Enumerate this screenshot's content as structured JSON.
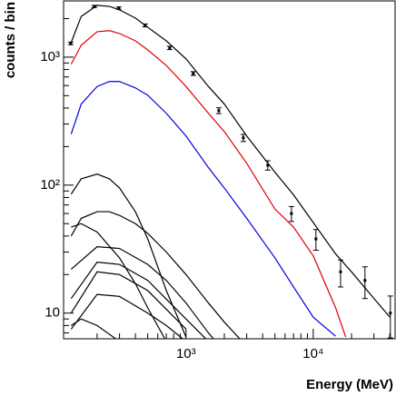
{
  "chart_data": {
    "type": "line",
    "xlabel": "Energy (MeV)",
    "ylabel": "counts / bin",
    "xscale": "log",
    "yscale": "log",
    "xlim": [
      109,
      44000
    ],
    "ylim": [
      6.3,
      2750
    ],
    "xticks": [
      {
        "value": 1000,
        "label": "10³"
      },
      {
        "value": 10000,
        "label": "10⁴"
      }
    ],
    "yticks": [
      10,
      {
        "value": 100,
        "label": "10²"
      },
      {
        "value": 1000,
        "label": "10³"
      }
    ],
    "xticks_minor": [
      200,
      300,
      400,
      500,
      600,
      700,
      800,
      900,
      2000,
      3000,
      4000,
      5000,
      6000,
      7000,
      8000,
      9000,
      20000,
      30000,
      40000
    ],
    "yticks_minor": [
      7,
      8,
      9,
      20,
      30,
      40,
      50,
      60,
      70,
      80,
      90,
      200,
      300,
      400,
      500,
      600,
      700,
      800,
      900,
      2000
    ],
    "points": {
      "color": "#000000",
      "x": [
        124,
        190,
        296,
        477,
        744,
        1140,
        1810,
        2820,
        4390,
        6740,
        10500,
        16400,
        25500,
        40400
      ],
      "values": [
        1280,
        2490,
        2420,
        1770,
        1180,
        745,
        382,
        234,
        143,
        60,
        38,
        21,
        18,
        10
      ],
      "errors": [
        30,
        50,
        50,
        45,
        35,
        25,
        20,
        15,
        12,
        8,
        7,
        5,
        5,
        3.6
      ]
    },
    "series": [
      {
        "color": "#000000",
        "x": [
          125,
          150,
          200,
          250,
          300,
          400,
          500,
          700,
          1000,
          1500,
          2000,
          3000,
          5000,
          7000,
          10000,
          15000,
          20000,
          30000,
          40000
        ],
        "values": [
          1300,
          2080,
          2540,
          2490,
          2340,
          2020,
          1710,
          1340,
          970,
          590,
          430,
          242,
          126,
          84,
          51,
          29,
          21,
          13,
          9.3
        ]
      },
      {
        "color": "#e00000",
        "x": [
          125,
          150,
          200,
          250,
          300,
          400,
          500,
          700,
          1000,
          1500,
          2000,
          3000,
          5000,
          7000,
          10000,
          15000,
          18000
        ],
        "values": [
          880,
          1240,
          1580,
          1610,
          1530,
          1340,
          1140,
          860,
          590,
          364,
          262,
          148,
          65,
          47,
          28,
          11,
          6.5
        ]
      },
      {
        "color": "#0000e0",
        "x": [
          125,
          150,
          200,
          250,
          300,
          400,
          500,
          700,
          1000,
          1500,
          2000,
          3000,
          5000,
          7000,
          10000,
          15000
        ],
        "values": [
          250,
          430,
          590,
          645,
          645,
          575,
          504,
          364,
          242,
          137,
          95,
          55,
          27,
          16,
          9.3,
          6.6
        ]
      },
      {
        "color": "#000000",
        "x": [
          125,
          150,
          200,
          250,
          300,
          400,
          500,
          700,
          1000
        ],
        "values": [
          85,
          112,
          122,
          112,
          95,
          62,
          38,
          15,
          6.5
        ]
      },
      {
        "color": "#000000",
        "x": [
          125,
          150,
          200,
          250,
          300,
          400,
          500,
          700,
          1000,
          1500,
          2000,
          3000
        ],
        "values": [
          40,
          55,
          62,
          62,
          58,
          50,
          42,
          30,
          20,
          12,
          8.5,
          5.5
        ]
      },
      {
        "color": "#000000",
        "x": [
          125,
          150,
          200,
          300,
          400,
          500,
          700
        ],
        "values": [
          47,
          50,
          43,
          27,
          17,
          11,
          6
        ]
      },
      {
        "color": "#000000",
        "x": [
          125,
          200,
          300,
          500,
          700,
          1000,
          1500,
          2000
        ],
        "values": [
          22,
          33,
          32,
          24,
          18,
          12,
          7,
          5
        ]
      },
      {
        "color": "#000000",
        "x": [
          125,
          200,
          300,
          500,
          1000,
          1500
        ],
        "values": [
          13,
          25,
          24,
          18,
          9,
          6
        ]
      },
      {
        "color": "#000000",
        "x": [
          125,
          200,
          300,
          500,
          1000
        ],
        "values": [
          10,
          21,
          20,
          15,
          7.5
        ]
      },
      {
        "color": "#000000",
        "x": [
          125,
          200,
          300,
          500,
          700,
          1000
        ],
        "values": [
          7.5,
          14,
          13.5,
          10,
          8,
          6
        ]
      },
      {
        "color": "#000000",
        "x": [
          125,
          150,
          200,
          300
        ],
        "values": [
          8,
          9,
          8,
          6
        ]
      }
    ]
  }
}
